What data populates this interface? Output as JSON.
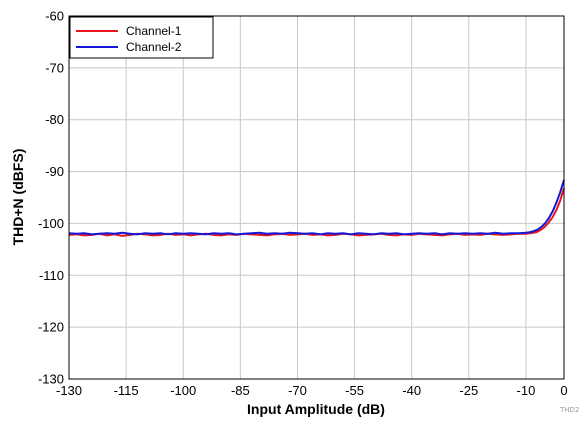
{
  "chart_data": {
    "type": "line",
    "title": "",
    "xlabel": "Input Amplitude (dB)",
    "ylabel": "THD+N (dBFS)",
    "xlim": [
      -130,
      0
    ],
    "ylim": [
      -130,
      -60
    ],
    "xticks": [
      -130,
      -115,
      -100,
      -85,
      -70,
      -55,
      -40,
      -25,
      -10,
      0
    ],
    "yticks": [
      -60,
      -70,
      -80,
      -90,
      -100,
      -110,
      -120,
      -130
    ],
    "grid": true,
    "legend": "top-left",
    "series": [
      {
        "name": "Channel-1",
        "color": "#e8141b",
        "x": [
          -130,
          -128,
          -126,
          -124,
          -122,
          -120,
          -118,
          -116,
          -114,
          -112,
          -110,
          -108,
          -106,
          -104,
          -102,
          -100,
          -98,
          -96,
          -94,
          -92,
          -90,
          -88,
          -86,
          -84,
          -82,
          -80,
          -78,
          -76,
          -74,
          -72,
          -70,
          -68,
          -66,
          -64,
          -62,
          -60,
          -58,
          -56,
          -54,
          -52,
          -50,
          -48,
          -46,
          -44,
          -42,
          -40,
          -38,
          -36,
          -34,
          -32,
          -30,
          -28,
          -26,
          -24,
          -22,
          -20,
          -18,
          -16,
          -14,
          -12,
          -10,
          -9,
          -8,
          -7,
          -6,
          -5,
          -4,
          -3,
          -2,
          -1,
          0
        ],
        "values": [
          -102.2,
          -102.1,
          -102.3,
          -102.2,
          -102.0,
          -102.3,
          -102.1,
          -102.4,
          -102.2,
          -102.0,
          -102.1,
          -102.3,
          -102.2,
          -102.0,
          -102.2,
          -102.1,
          -102.3,
          -102.1,
          -102.0,
          -102.2,
          -102.3,
          -102.1,
          -102.2,
          -102.0,
          -102.1,
          -102.2,
          -102.3,
          -102.1,
          -102.0,
          -102.2,
          -102.1,
          -102.0,
          -102.2,
          -102.1,
          -102.3,
          -102.2,
          -102.0,
          -102.1,
          -102.3,
          -102.2,
          -102.1,
          -102.0,
          -102.2,
          -102.3,
          -102.1,
          -102.2,
          -102.0,
          -102.1,
          -102.2,
          -102.3,
          -102.1,
          -102.0,
          -102.2,
          -102.1,
          -102.2,
          -102.0,
          -102.1,
          -102.2,
          -102.1,
          -102.0,
          -102.0,
          -101.9,
          -101.8,
          -101.6,
          -101.2,
          -100.6,
          -99.8,
          -98.8,
          -97.4,
          -95.6,
          -93.2
        ]
      },
      {
        "name": "Channel-2",
        "color": "#1417d8",
        "x": [
          -130,
          -128,
          -126,
          -124,
          -122,
          -120,
          -118,
          -116,
          -114,
          -112,
          -110,
          -108,
          -106,
          -104,
          -102,
          -100,
          -98,
          -96,
          -94,
          -92,
          -90,
          -88,
          -86,
          -84,
          -82,
          -80,
          -78,
          -76,
          -74,
          -72,
          -70,
          -68,
          -66,
          -64,
          -62,
          -60,
          -58,
          -56,
          -54,
          -52,
          -50,
          -48,
          -46,
          -44,
          -42,
          -40,
          -38,
          -36,
          -34,
          -32,
          -30,
          -28,
          -26,
          -24,
          -22,
          -20,
          -18,
          -16,
          -14,
          -12,
          -10,
          -9,
          -8,
          -7,
          -6,
          -5,
          -4,
          -3,
          -2,
          -1,
          0
        ],
        "values": [
          -101.9,
          -102.0,
          -101.9,
          -102.1,
          -102.0,
          -101.9,
          -102.0,
          -101.8,
          -102.0,
          -102.1,
          -101.9,
          -102.0,
          -101.9,
          -102.1,
          -101.9,
          -102.0,
          -101.9,
          -102.0,
          -102.1,
          -101.9,
          -102.0,
          -101.9,
          -102.1,
          -102.0,
          -101.9,
          -101.8,
          -102.0,
          -101.9,
          -102.0,
          -101.8,
          -101.9,
          -102.0,
          -101.9,
          -102.1,
          -101.9,
          -102.0,
          -101.9,
          -102.1,
          -101.9,
          -102.0,
          -102.1,
          -101.9,
          -102.0,
          -101.9,
          -102.1,
          -102.0,
          -101.9,
          -102.0,
          -101.9,
          -102.1,
          -101.9,
          -102.0,
          -101.9,
          -102.0,
          -101.9,
          -102.0,
          -101.8,
          -102.0,
          -101.9,
          -101.9,
          -101.8,
          -101.7,
          -101.5,
          -101.2,
          -100.7,
          -100.0,
          -99.0,
          -97.7,
          -96.0,
          -94.0,
          -91.6
        ]
      }
    ],
    "watermark": "THD2"
  }
}
